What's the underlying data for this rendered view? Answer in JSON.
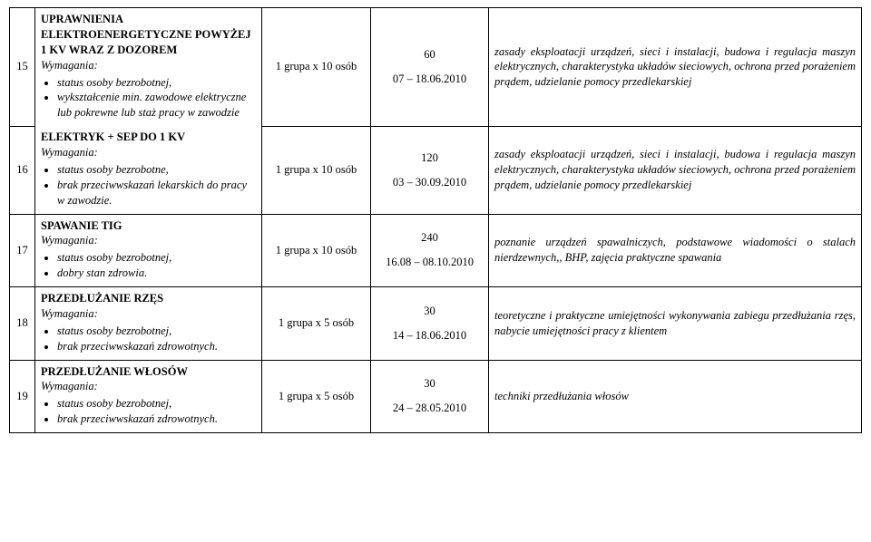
{
  "rows": [
    {
      "num": "15",
      "title": "UPRAWNIENIA ELEKTROENERGETYCZNE POWYŻEJ 1 KV WRAZ Z DOZOREM",
      "reqLabel": "Wymagania:",
      "bullets": [
        "status osoby bezrobotnej,",
        "wykształcenie min. zawodowe elektryczne lub pokrewne lub staż pracy w zawodzie"
      ],
      "group": "1 grupa x 10 osób",
      "hours": "60",
      "dates": "07 – 18.06.2010",
      "desc": "zasady eksploatacji urządzeń, sieci i instalacji, budowa i regulacja maszyn elektrycznych, charakterystyka układów sieciowych, ochrona przed porażeniem prądem, udzielanie pomocy przedlekarskiej"
    },
    {
      "num": "16",
      "title": "ELEKTRYK + SEP DO 1 KV",
      "reqLabel": "Wymagania:",
      "bullets": [
        "status osoby bezrobotne,",
        "brak przeciwwskazań lekarskich do pracy w zawodzie."
      ],
      "group": "1 grupa x 10 osób",
      "hours": "120",
      "dates": "03 – 30.09.2010",
      "desc": "zasady eksploatacji urządzeń, sieci i instalacji, budowa i regulacja maszyn elektrycznych, charakterystyka układów sieciowych, ochrona przed porażeniem prądem, udzielanie pomocy przedlekarskiej"
    },
    {
      "num": "17",
      "title": "SPAWANIE TIG",
      "reqLabel": "Wymagania:",
      "bullets": [
        "status osoby bezrobotnej,",
        "dobry stan zdrowia."
      ],
      "group": "1 grupa x 10 osób",
      "hours": "240",
      "dates": "16.08 – 08.10.2010",
      "desc": "poznanie urządzeń spawalniczych, podstawowe wiadomości o stalach nierdzewnych,, BHP, zajęcia praktyczne spawania"
    },
    {
      "num": "18",
      "title": "PRZEDŁUŻANIE RZĘS",
      "reqLabel": "Wymagania:",
      "bullets": [
        "status osoby bezrobotnej,",
        "brak przeciwwskazań zdrowotnych."
      ],
      "group": "1 grupa x 5 osób",
      "hours": "30",
      "dates": "14 – 18.06.2010",
      "desc": "teoretyczne i praktyczne umiejętności wykonywania zabiegu przedłużania rzęs, nabycie umiejętności pracy z klientem"
    },
    {
      "num": "19",
      "title": "PRZEDŁUŻANIE WŁOSÓW",
      "reqLabel": "Wymagania:",
      "bullets": [
        "status osoby bezrobotnej,",
        "brak przeciwwskazań zdrowotnych."
      ],
      "group": "1 grupa x 5 osób",
      "hours": "30",
      "dates": "24 – 28.05.2010",
      "desc": "techniki przedłużania włosów"
    }
  ]
}
